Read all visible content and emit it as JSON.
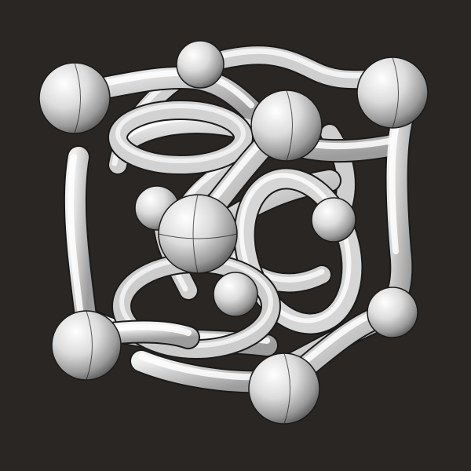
{
  "scene": {
    "subject": "tube-knot-lattice-cube",
    "colors": {
      "background": "#2a2623",
      "tube_light": "#f4f4f4",
      "tube_mid": "#cfcfcf",
      "tube_dark": "#6e6e6e",
      "edge_line": "#1a1a1a"
    },
    "nodes": [
      "sphere",
      "sphere",
      "sphere",
      "sphere",
      "sphere",
      "sphere",
      "sphere",
      "sphere",
      "sphere",
      "sphere",
      "sphere"
    ]
  }
}
